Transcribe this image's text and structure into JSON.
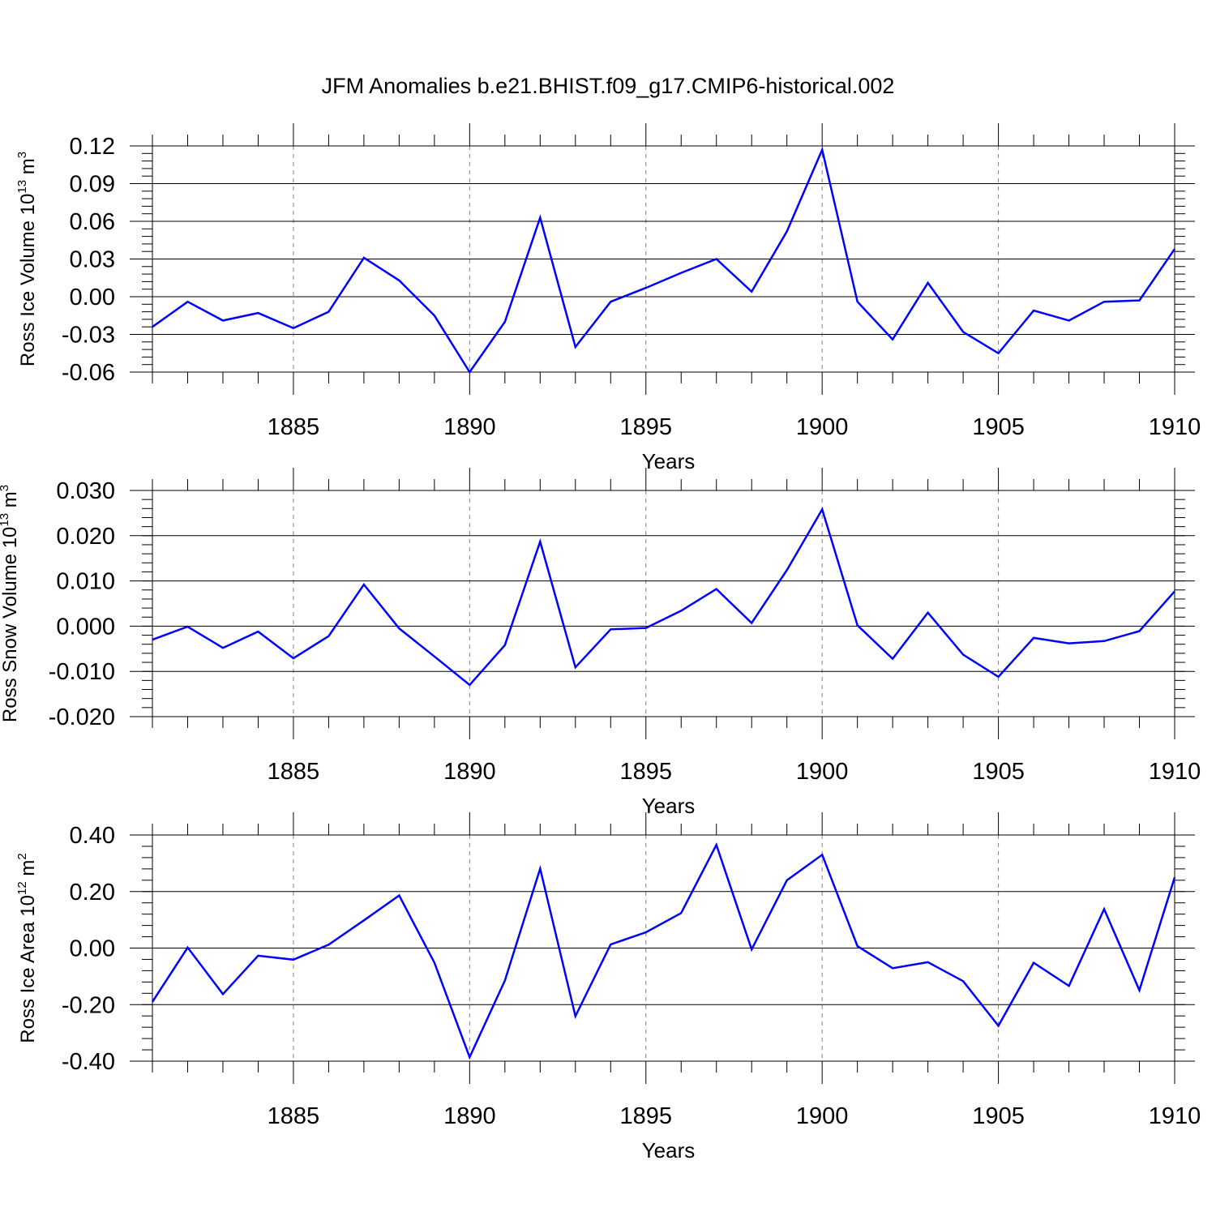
{
  "title": "JFM Anomalies b.e21.BHIST.f09_g17.CMIP6-historical.002",
  "colors": {
    "series": "#0000ff",
    "axis": "#000000",
    "grid": "#808080"
  },
  "chart_data": [
    {
      "type": "line",
      "name": "ice-volume",
      "ylabel": {
        "base": "Ross Ice Volume 10",
        "sup1": "13",
        "mid": " m",
        "sup2": "3"
      },
      "xlabel": "Years",
      "xlim": [
        1881,
        1910
      ],
      "ylim": [
        -0.06,
        0.12
      ],
      "yticks": [
        -0.06,
        -0.03,
        0.0,
        0.03,
        0.06,
        0.09,
        0.12
      ],
      "ytick_labels": [
        "-0.06",
        "-0.03",
        "0.00",
        "0.03",
        "0.06",
        "0.09",
        "0.12"
      ],
      "yminor_step": 0.006,
      "xticks": [
        1885,
        1890,
        1895,
        1900,
        1905,
        1910
      ],
      "xtick_labels": [
        "1885",
        "1890",
        "1895",
        "1900",
        "1905",
        "1910"
      ],
      "grid": "vertical dashed at major x ticks",
      "x": [
        1881,
        1882,
        1883,
        1884,
        1885,
        1886,
        1887,
        1888,
        1889,
        1890,
        1891,
        1892,
        1893,
        1894,
        1895,
        1896,
        1897,
        1898,
        1899,
        1900,
        1901,
        1902,
        1903,
        1904,
        1905,
        1906,
        1907,
        1908,
        1909,
        1910
      ],
      "series": [
        {
          "name": "Ross Ice Volume",
          "values": [
            -0.024,
            -0.004,
            -0.019,
            -0.013,
            -0.025,
            -0.012,
            0.031,
            0.013,
            -0.015,
            -0.06,
            -0.02,
            0.063,
            -0.04,
            -0.004,
            0.007,
            0.019,
            0.03,
            0.004,
            0.052,
            0.117,
            -0.004,
            -0.034,
            0.011,
            -0.028,
            -0.045,
            -0.011,
            -0.019,
            -0.004,
            -0.003,
            0.038
          ]
        }
      ]
    },
    {
      "type": "line",
      "name": "snow-volume",
      "ylabel": {
        "base": "Ross Snow Volume 10",
        "sup1": "13",
        "mid": " m",
        "sup2": "3"
      },
      "xlabel": "Years",
      "xlim": [
        1881,
        1910
      ],
      "ylim": [
        -0.02,
        0.03
      ],
      "yticks": [
        -0.02,
        -0.01,
        0.0,
        0.01,
        0.02,
        0.03
      ],
      "ytick_labels": [
        "-0.020",
        "-0.010",
        "0.000",
        "0.010",
        "0.020",
        "0.030"
      ],
      "yminor_step": 0.002,
      "xticks": [
        1885,
        1890,
        1895,
        1900,
        1905,
        1910
      ],
      "xtick_labels": [
        "1885",
        "1890",
        "1895",
        "1900",
        "1905",
        "1910"
      ],
      "grid": "vertical dashed at major x ticks",
      "x": [
        1881,
        1882,
        1883,
        1884,
        1885,
        1886,
        1887,
        1888,
        1889,
        1890,
        1891,
        1892,
        1893,
        1894,
        1895,
        1896,
        1897,
        1898,
        1899,
        1900,
        1901,
        1902,
        1903,
        1904,
        1905,
        1906,
        1907,
        1908,
        1909,
        1910
      ],
      "series": [
        {
          "name": "Ross Snow Volume",
          "values": [
            -0.003,
            -0.0001,
            -0.0048,
            -0.0012,
            -0.0071,
            -0.0022,
            0.0092,
            -0.0005,
            -0.0067,
            -0.013,
            -0.0042,
            0.0187,
            -0.0091,
            -0.0007,
            -0.0004,
            0.0034,
            0.0082,
            0.0007,
            0.0124,
            0.0258,
            0.0002,
            -0.0072,
            0.003,
            -0.0063,
            -0.0112,
            -0.0026,
            -0.0038,
            -0.0033,
            -0.0011,
            0.0077
          ]
        }
      ]
    },
    {
      "type": "line",
      "name": "ice-area",
      "ylabel": {
        "base": "Ross Ice Area 10",
        "sup1": "12",
        "mid": " m",
        "sup2": "2"
      },
      "xlabel": "Years",
      "xlim": [
        1881,
        1910
      ],
      "ylim": [
        -0.4,
        0.4
      ],
      "yticks": [
        -0.4,
        -0.2,
        0.0,
        0.2,
        0.4
      ],
      "ytick_labels": [
        "-0.40",
        "-0.20",
        "0.00",
        "0.20",
        "0.40"
      ],
      "yminor_step": 0.04,
      "xticks": [
        1885,
        1890,
        1895,
        1900,
        1905,
        1910
      ],
      "xtick_labels": [
        "1885",
        "1890",
        "1895",
        "1900",
        "1905",
        "1910"
      ],
      "grid": "vertical dashed at major x ticks",
      "x": [
        1881,
        1882,
        1883,
        1884,
        1885,
        1886,
        1887,
        1888,
        1889,
        1890,
        1891,
        1892,
        1893,
        1894,
        1895,
        1896,
        1897,
        1898,
        1899,
        1900,
        1901,
        1902,
        1903,
        1904,
        1905,
        1906,
        1907,
        1908,
        1909,
        1910
      ],
      "series": [
        {
          "name": "Ross Ice Area",
          "values": [
            -0.19,
            0.002,
            -0.163,
            -0.027,
            -0.041,
            0.012,
            0.098,
            0.186,
            -0.052,
            -0.386,
            -0.115,
            0.281,
            -0.241,
            0.013,
            0.056,
            0.124,
            0.365,
            -0.005,
            0.24,
            0.33,
            0.007,
            -0.071,
            -0.05,
            -0.117,
            -0.275,
            -0.052,
            -0.134,
            0.138,
            -0.149,
            0.25
          ]
        }
      ]
    }
  ]
}
